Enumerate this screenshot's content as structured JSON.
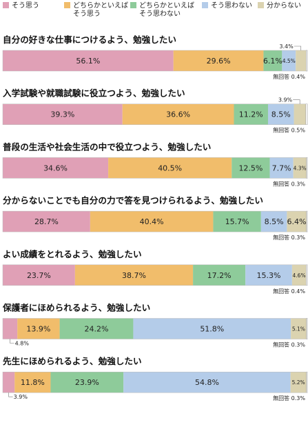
{
  "legend": [
    {
      "label": "そう思う",
      "color": "#e0a0b6"
    },
    {
      "label": "どちらかといえば\nそう思う",
      "color": "#f1bd6b"
    },
    {
      "label": "どちらかといえば\nそう思わない",
      "color": "#8ecb9a"
    },
    {
      "label": "そう思わない",
      "color": "#b4cce9"
    },
    {
      "label": "分からない",
      "color": "#dbd3b0"
    }
  ],
  "no_answer_label": "無回答",
  "chart_data": {
    "type": "bar",
    "stacked": true,
    "orientation": "horizontal",
    "series_names": [
      "そう思う",
      "どちらかといえばそう思う",
      "どちらかといえばそう思わない",
      "そう思わない",
      "分からない",
      "無回答"
    ],
    "items": [
      {
        "title": "自分の好きな仕事につけるよう、勉強したい",
        "values": [
          56.1,
          29.6,
          6.1,
          4.5,
          3.4,
          0.4
        ],
        "labels": [
          "56.1%",
          "29.6%",
          "6.1%",
          "4.5%",
          "3.4%",
          "0.4%"
        ]
      },
      {
        "title": "入学試験や就職試験に役立つよう、勉強したい",
        "values": [
          39.3,
          36.6,
          11.2,
          8.5,
          3.9,
          0.5
        ],
        "labels": [
          "39.3%",
          "36.6%",
          "11.2%",
          "8.5%",
          "3.9%",
          "0.5%"
        ]
      },
      {
        "title": "普段の生活や社会生活の中で役立つよう、勉強したい",
        "values": [
          34.6,
          40.5,
          12.5,
          7.7,
          4.3,
          0.3
        ],
        "labels": [
          "34.6%",
          "40.5%",
          "12.5%",
          "7.7%",
          "4.3%",
          "0.3%"
        ]
      },
      {
        "title": "分からないことでも自分の力で答を見つけられるよう、勉強したい",
        "values": [
          28.7,
          40.4,
          15.7,
          8.5,
          6.4,
          0.3
        ],
        "labels": [
          "28.7%",
          "40.4%",
          "15.7%",
          "8.5%",
          "6.4%",
          "0.3%"
        ]
      },
      {
        "title": "よい成績をとれるよう、勉強したい",
        "values": [
          23.7,
          38.7,
          17.2,
          15.3,
          4.6,
          0.4
        ],
        "labels": [
          "23.7%",
          "38.7%",
          "17.2%",
          "15.3%",
          "4.6%",
          "0.4%"
        ]
      },
      {
        "title": "保護者にほめられるよう、勉強したい",
        "values": [
          4.8,
          13.9,
          24.2,
          51.8,
          5.1,
          0.3
        ],
        "labels": [
          "4.8%",
          "13.9%",
          "24.2%",
          "51.8%",
          "5.1%",
          "0.3%"
        ]
      },
      {
        "title": "先生にほめられるよう、勉強したい",
        "values": [
          3.9,
          11.8,
          23.9,
          54.8,
          5.2,
          0.3
        ],
        "labels": [
          "3.9%",
          "11.8%",
          "23.9%",
          "54.8%",
          "5.2%",
          "0.3%"
        ]
      }
    ]
  }
}
